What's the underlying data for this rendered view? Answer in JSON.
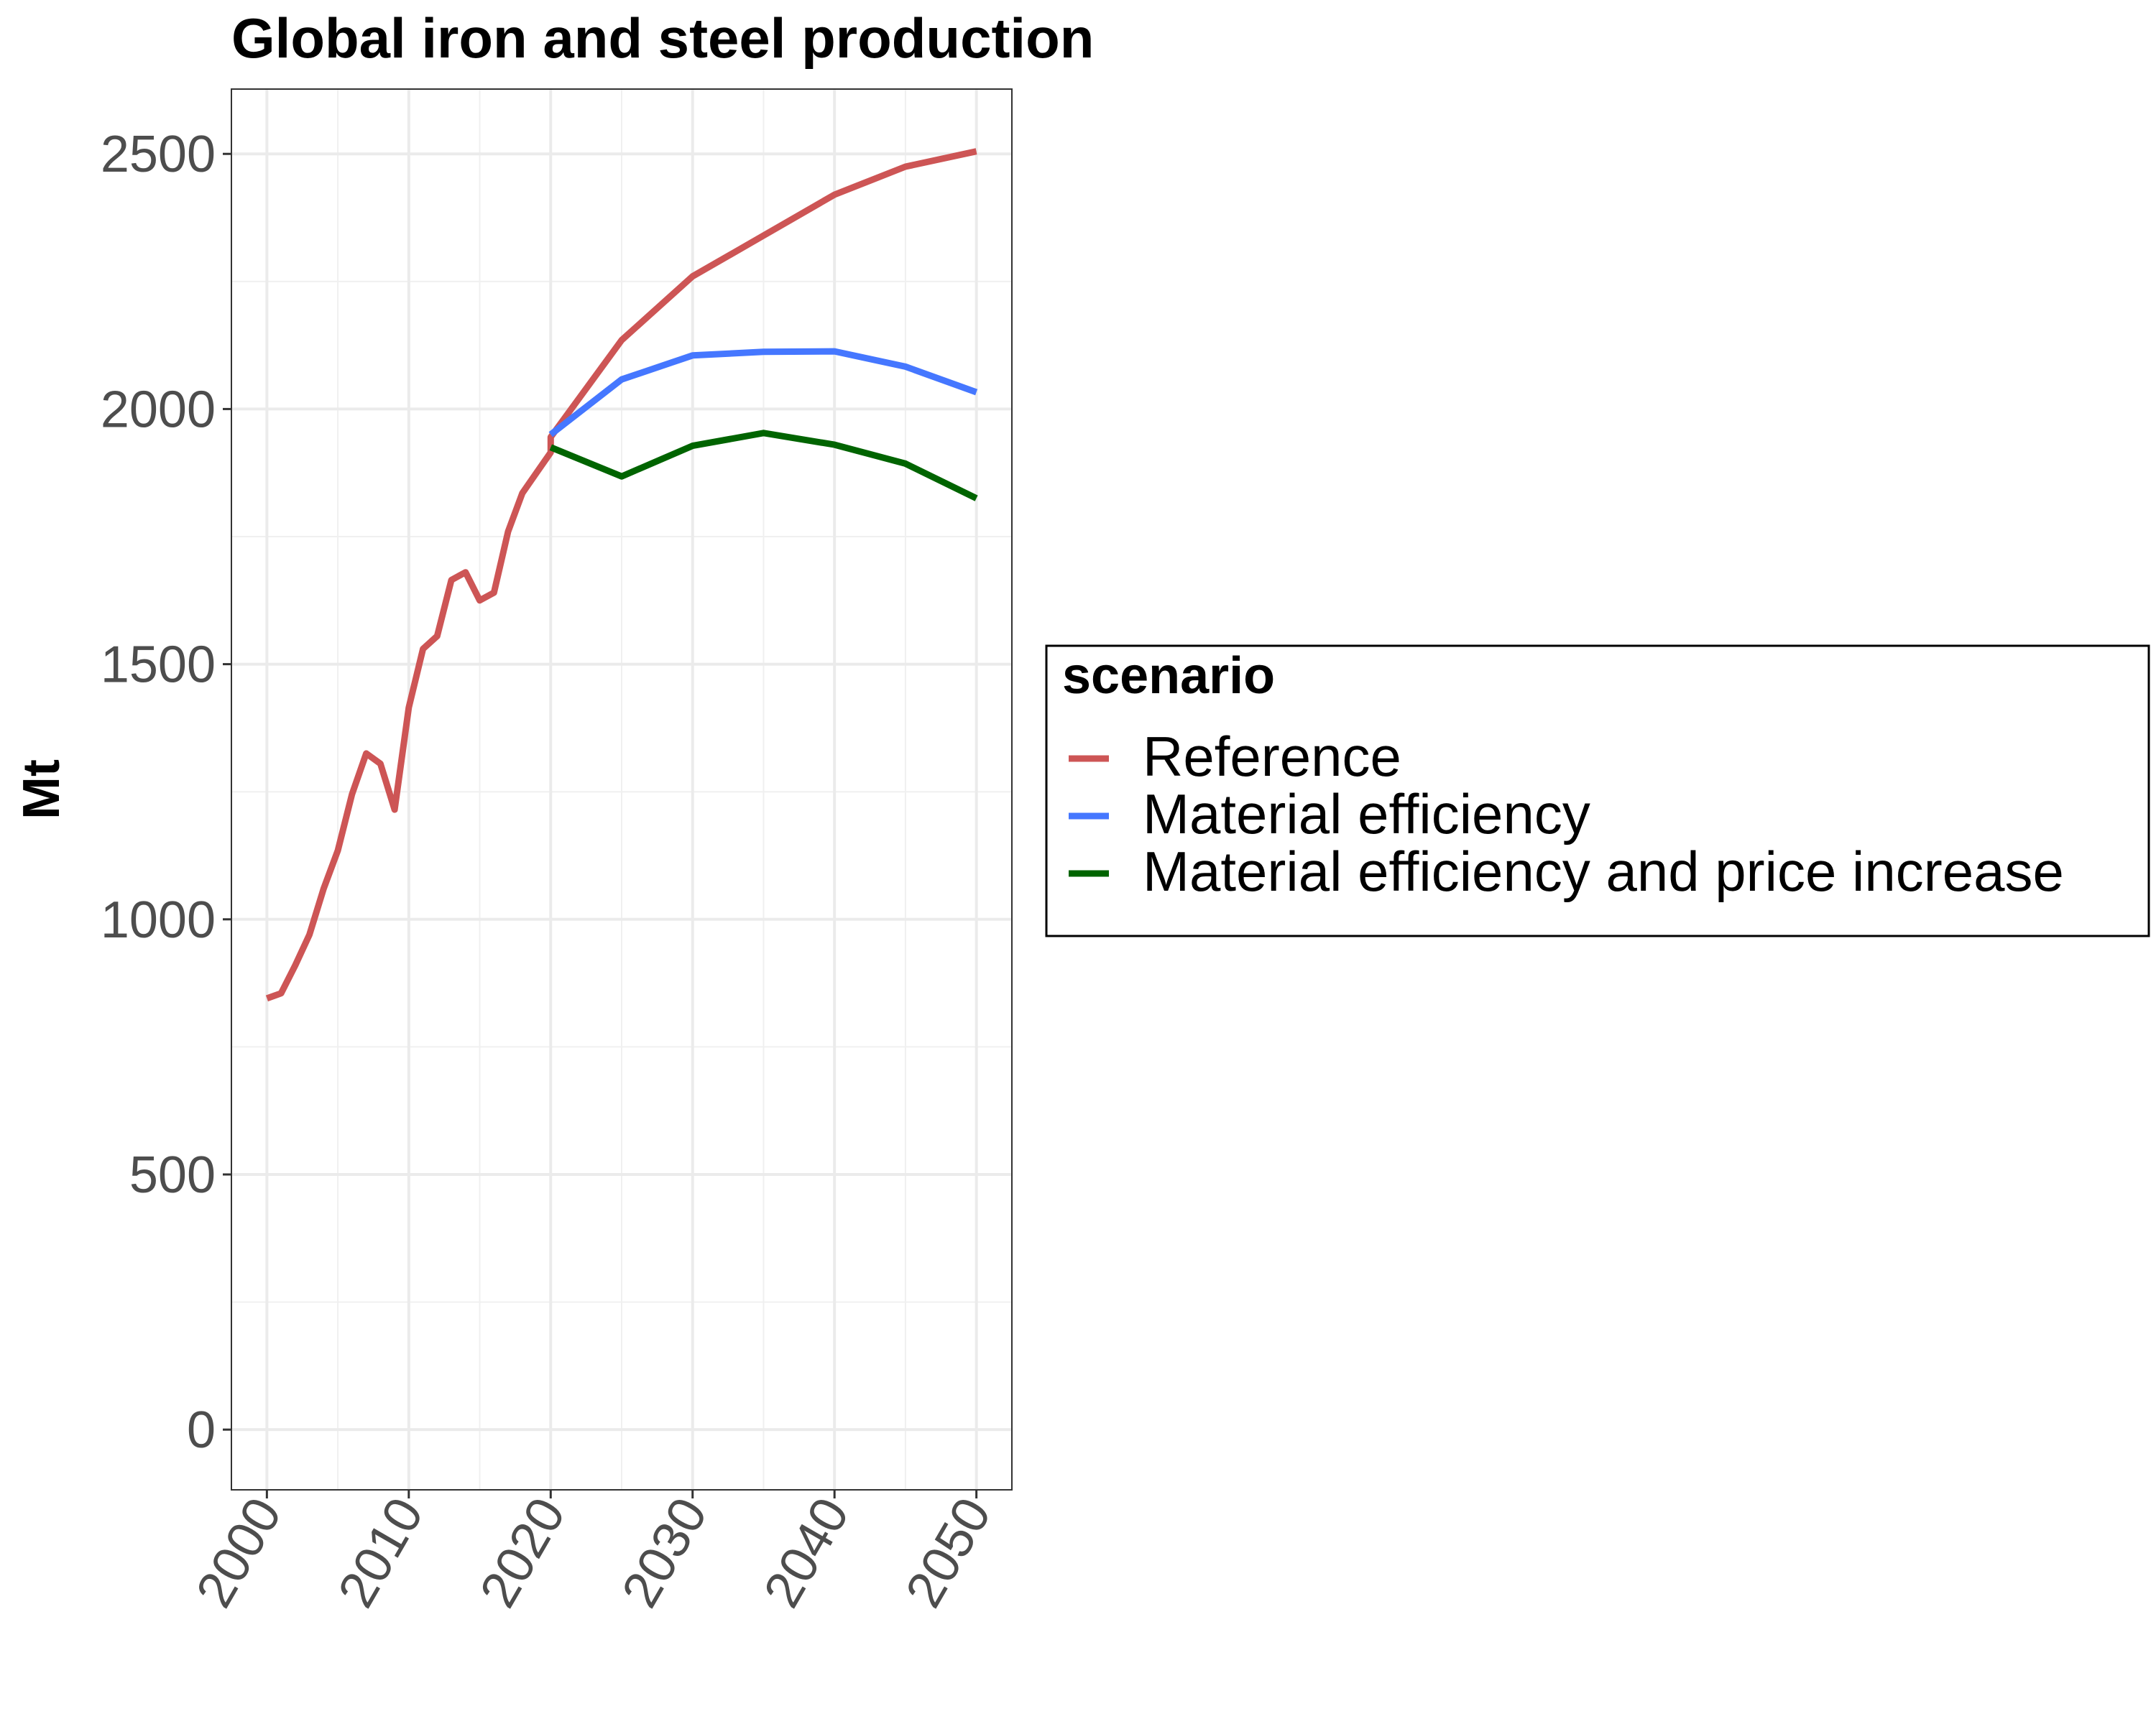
{
  "chart_data": {
    "type": "line",
    "title": "Global  iron and steel production",
    "xlabel": "",
    "ylabel": "Mt",
    "xlim": [
      1997.5,
      2052.5
    ],
    "ylim": [
      -118,
      2627
    ],
    "x_ticks": [
      2000,
      2010,
      2020,
      2030,
      2040,
      2050
    ],
    "x_tick_labels": [
      "2000",
      "2010",
      "2020",
      "2030",
      "2040",
      "2050"
    ],
    "y_ticks": [
      0,
      500,
      1000,
      1500,
      2000,
      2500
    ],
    "y_tick_labels": [
      "0",
      "500",
      "1000",
      "1500",
      "2000",
      "2500"
    ],
    "grid": true,
    "legend": {
      "title": "scenario",
      "position": "right"
    },
    "series": [
      {
        "name": "Reference",
        "color": "#cd5555",
        "x": [
          2000,
          2001,
          2002,
          2003,
          2004,
          2005,
          2006,
          2007,
          2008,
          2009,
          2010,
          2011,
          2012,
          2013,
          2014,
          2015,
          2016,
          2017,
          2018,
          2019,
          2020,
          2020,
          2025,
          2030,
          2035,
          2040,
          2045,
          2050
        ],
        "values": [
          845,
          855,
          910,
          970,
          1060,
          1135,
          1245,
          1325,
          1305,
          1215,
          1415,
          1530,
          1555,
          1665,
          1680,
          1625,
          1640,
          1760,
          1835,
          1875,
          1915,
          1945,
          2135,
          2260,
          2340,
          2420,
          2475,
          2505
        ]
      },
      {
        "name": "Material efficiency",
        "color": "#4577ff",
        "x": [
          2020,
          2025,
          2030,
          2035,
          2040,
          2045,
          2050
        ],
        "values": [
          1950,
          2058,
          2105,
          2112,
          2113,
          2083,
          2033
        ]
      },
      {
        "name": "Material efficiency and price increase",
        "color": "#006400",
        "x": [
          2020,
          2025,
          2030,
          2035,
          2040,
          2045,
          2050
        ],
        "values": [
          1925,
          1868,
          1928,
          1953,
          1930,
          1893,
          1825
        ]
      }
    ]
  }
}
